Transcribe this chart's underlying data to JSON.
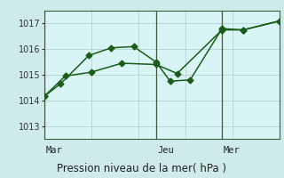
{
  "xlabel": "Pression niveau de la mer( hPa )",
  "background_color": "#ceeaea",
  "plot_bg_color": "#d8f4f4",
  "grid_color": "#b8d8d8",
  "line_color": "#1a5c1a",
  "axis_color": "#336633",
  "ylim": [
    1012.5,
    1017.5
  ],
  "yticks": [
    1013,
    1014,
    1015,
    1016,
    1017
  ],
  "day_labels": [
    [
      "Mar",
      0.0
    ],
    [
      "Jeu",
      0.475
    ],
    [
      "Mer",
      0.755
    ]
  ],
  "vline_x": [
    0.0,
    0.475,
    0.755
  ],
  "series1_x": [
    0.0,
    0.07,
    0.19,
    0.285,
    0.38,
    0.475,
    0.535,
    0.62,
    0.755,
    0.845,
    1.0
  ],
  "series1_y": [
    1014.15,
    1014.65,
    1015.75,
    1016.05,
    1016.1,
    1015.5,
    1014.75,
    1014.8,
    1016.8,
    1016.75,
    1017.1
  ],
  "series2_x": [
    0.0,
    0.09,
    0.2,
    0.33,
    0.475,
    0.565,
    0.755,
    0.845,
    1.0
  ],
  "series2_y": [
    1014.15,
    1014.95,
    1015.1,
    1015.45,
    1015.4,
    1015.05,
    1016.75,
    1016.75,
    1017.1
  ],
  "marker_size": 3.5,
  "linewidth": 1.1,
  "xlabel_fontsize": 8.5,
  "tick_fontsize": 7,
  "day_fontsize": 7.5
}
